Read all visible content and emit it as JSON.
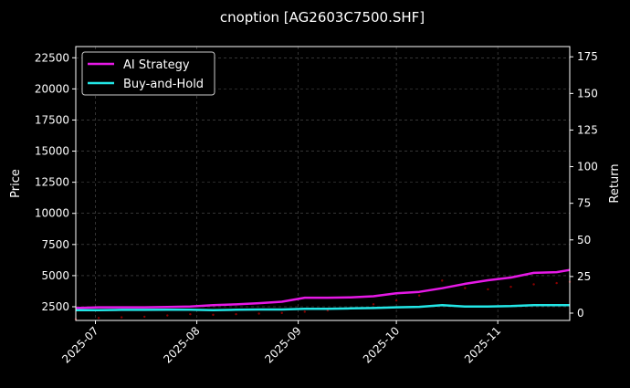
{
  "chart_data": {
    "type": "line",
    "title": "cnoption [AG2603C7500.SHF]",
    "ylabel": "Price",
    "y2label": "Return",
    "ylim": [
      1400,
      23400
    ],
    "y2lim": [
      -5,
      182
    ],
    "xlim": [
      "2025-06-25",
      "2025-11-23"
    ],
    "yticks": [
      2500,
      5000,
      7500,
      10000,
      12500,
      15000,
      17500,
      20000,
      22500
    ],
    "y2ticks": [
      0,
      25,
      50,
      75,
      100,
      125,
      150,
      175
    ],
    "xticks": [
      "2025-07",
      "2025-08",
      "2025-09",
      "2025-10",
      "2025-11"
    ],
    "grid": true,
    "legend_position": "top-left",
    "colors": {
      "background": "#000000",
      "ai": "#e619e6",
      "bh": "#22e6e6",
      "price": "#8b0000"
    },
    "x": [
      "2025-06-25",
      "2025-07-02",
      "2025-07-09",
      "2025-07-16",
      "2025-07-23",
      "2025-07-30",
      "2025-08-06",
      "2025-08-13",
      "2025-08-20",
      "2025-08-27",
      "2025-09-03",
      "2025-09-10",
      "2025-09-17",
      "2025-09-24",
      "2025-10-01",
      "2025-10-08",
      "2025-10-15",
      "2025-10-22",
      "2025-10-29",
      "2025-11-05",
      "2025-11-12",
      "2025-11-19",
      "2025-11-23"
    ],
    "series": [
      {
        "name": "AI Strategy",
        "axis": "right",
        "values": [
          3.5,
          4,
          4,
          4,
          4.2,
          4.5,
          5.5,
          6,
          6.8,
          7.8,
          10.5,
          10.5,
          10.8,
          11.5,
          13.5,
          14.5,
          17,
          20,
          22.4,
          24.3,
          27.5,
          28,
          29.5
        ]
      },
      {
        "name": "Buy-and-Hold",
        "axis": "right",
        "values": [
          2,
          2,
          2.2,
          2.2,
          2.3,
          2.3,
          2,
          2.3,
          2.5,
          2.5,
          3,
          3,
          3.2,
          3.5,
          4,
          4.3,
          5.5,
          4.5,
          4.5,
          4.8,
          5.5,
          5.5,
          5.5
        ]
      },
      {
        "axis": "left",
        "style": "dots",
        "values": [
          1500,
          1600,
          1650,
          1700,
          1800,
          1900,
          1850,
          1900,
          1950,
          2000,
          2100,
          2200,
          2400,
          2700,
          3000,
          3400,
          4600,
          4000,
          3900,
          4100,
          4300,
          4400,
          4500
        ]
      }
    ]
  }
}
